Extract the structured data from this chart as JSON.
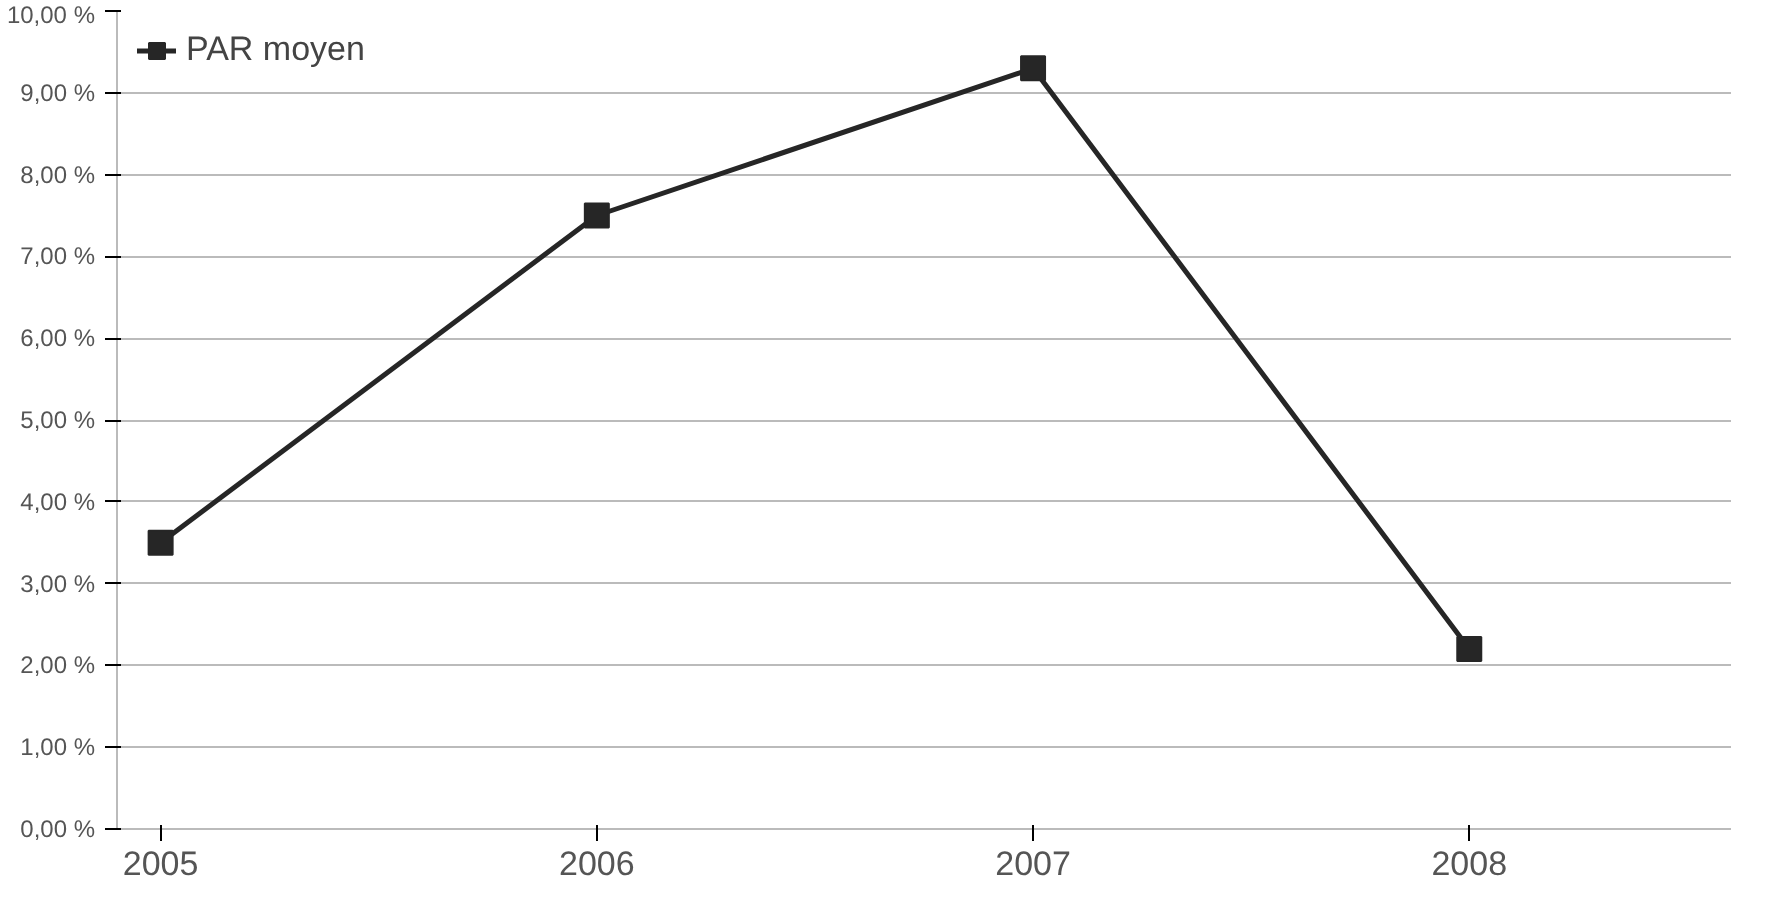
{
  "chart_data": {
    "type": "line",
    "categories": [
      "2005",
      "2006",
      "2007",
      "2008"
    ],
    "series": [
      {
        "name": "PAR moyen",
        "color": "#262626",
        "values": [
          3.5,
          7.5,
          9.3,
          2.2
        ]
      }
    ],
    "ylim": [
      0,
      10
    ],
    "yticks": [
      {
        "value": 0,
        "label": "0,00 %"
      },
      {
        "value": 1,
        "label": "1,00 %"
      },
      {
        "value": 2,
        "label": "2,00 %"
      },
      {
        "value": 3,
        "label": "3,00 %"
      },
      {
        "value": 4,
        "label": "4,00 %"
      },
      {
        "value": 5,
        "label": "5,00 %"
      },
      {
        "value": 6,
        "label": "6,00 %"
      },
      {
        "value": 7,
        "label": "7,00 %"
      },
      {
        "value": 8,
        "label": "8,00 %"
      },
      {
        "value": 9,
        "label": "9,00 %"
      },
      {
        "value": 10,
        "label": "10,00 %"
      }
    ],
    "grid": "y",
    "legend": "top left",
    "marker": "square",
    "line_style": "solid"
  }
}
